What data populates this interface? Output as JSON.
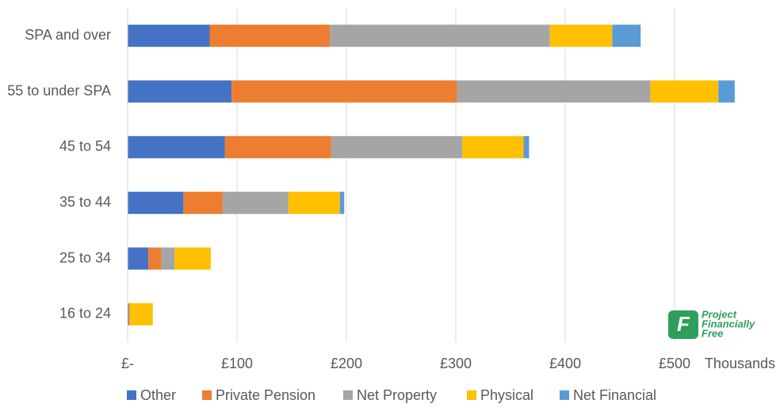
{
  "chart_data": {
    "type": "stacked-bar-horizontal",
    "categories": [
      "SPA and over",
      "55 to under SPA",
      "45 to 54",
      "35 to 44",
      "25 to 34",
      "16 to 24"
    ],
    "series": [
      {
        "name": "Other",
        "color": "#4472c4",
        "values": [
          75,
          95,
          89,
          51,
          19,
          1
        ]
      },
      {
        "name": "Private Pension",
        "color": "#ed7d31",
        "values": [
          110,
          206,
          97,
          36,
          12,
          1
        ]
      },
      {
        "name": "Net Property",
        "color": "#a5a5a5",
        "values": [
          201,
          177,
          120,
          60,
          12,
          0
        ]
      },
      {
        "name": "Physical",
        "color": "#ffc000",
        "values": [
          57,
          62,
          56,
          47,
          33,
          21
        ]
      },
      {
        "name": "Net Financial",
        "color": "#5b9bd5",
        "values": [
          26,
          15,
          5,
          4,
          0,
          0
        ]
      }
    ],
    "xlim": [
      0,
      560
    ],
    "xticks": [
      {
        "value": 0,
        "label": "£-"
      },
      {
        "value": 100,
        "label": "£100"
      },
      {
        "value": 200,
        "label": "£200"
      },
      {
        "value": 300,
        "label": "£300"
      },
      {
        "value": 400,
        "label": "£400"
      },
      {
        "value": 500,
        "label": "£500"
      }
    ],
    "x_unit_label": "Thousands",
    "grid": true,
    "legend": "bottom",
    "watermark": [
      "Project",
      "Financially",
      "Free"
    ]
  }
}
